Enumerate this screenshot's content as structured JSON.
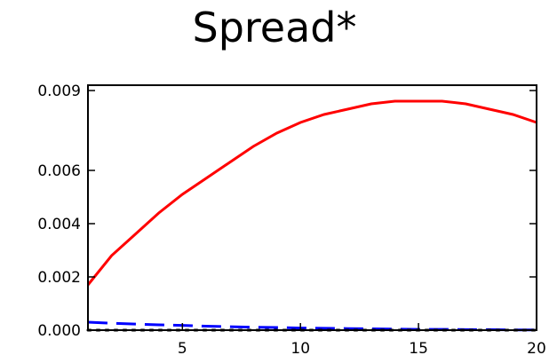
{
  "chart_data": {
    "type": "line",
    "title": "Spread*",
    "xlabel": "",
    "ylabel": "",
    "xlim": [
      1,
      20
    ],
    "ylim": [
      0.0,
      0.0092
    ],
    "x_ticks": [
      5,
      10,
      15,
      20
    ],
    "x_tick_labels": [
      "5",
      "10",
      "15",
      "20"
    ],
    "y_ticks": [
      0.0,
      0.002,
      0.004,
      0.006,
      0.009
    ],
    "y_tick_labels": [
      "0.000",
      "0.002",
      "0.004",
      "0.006",
      "0.009"
    ],
    "grid": false,
    "series": [
      {
        "color": "#ff0000",
        "style": "solid",
        "x": [
          1,
          2,
          3,
          4,
          5,
          6,
          7,
          8,
          9,
          10,
          11,
          12,
          13,
          14,
          15,
          16,
          17,
          18,
          19,
          20
        ],
        "values": [
          0.0017,
          0.0028,
          0.0036,
          0.0044,
          0.0051,
          0.0057,
          0.0063,
          0.0069,
          0.0074,
          0.0078,
          0.0081,
          0.0083,
          0.0085,
          0.0086,
          0.0086,
          0.0086,
          0.0085,
          0.0083,
          0.0081,
          0.0078
        ]
      },
      {
        "color": "#0000ff",
        "style": "dashed",
        "x": [
          1,
          2,
          3,
          4,
          5,
          6,
          7,
          8,
          9,
          10,
          11,
          12,
          13,
          14,
          15,
          16,
          17,
          18,
          19,
          20
        ],
        "values": [
          0.0003,
          0.00026,
          0.00023,
          0.0002,
          0.00018,
          0.00015,
          0.00013,
          0.00011,
          0.0001,
          8e-05,
          7e-05,
          6e-05,
          5e-05,
          4e-05,
          3e-05,
          3e-05,
          2e-05,
          2e-05,
          1e-05,
          1e-05
        ]
      },
      {
        "color": "#000000",
        "style": "dotted",
        "x": [
          1,
          20
        ],
        "values": [
          0.0,
          0.0
        ]
      }
    ]
  }
}
